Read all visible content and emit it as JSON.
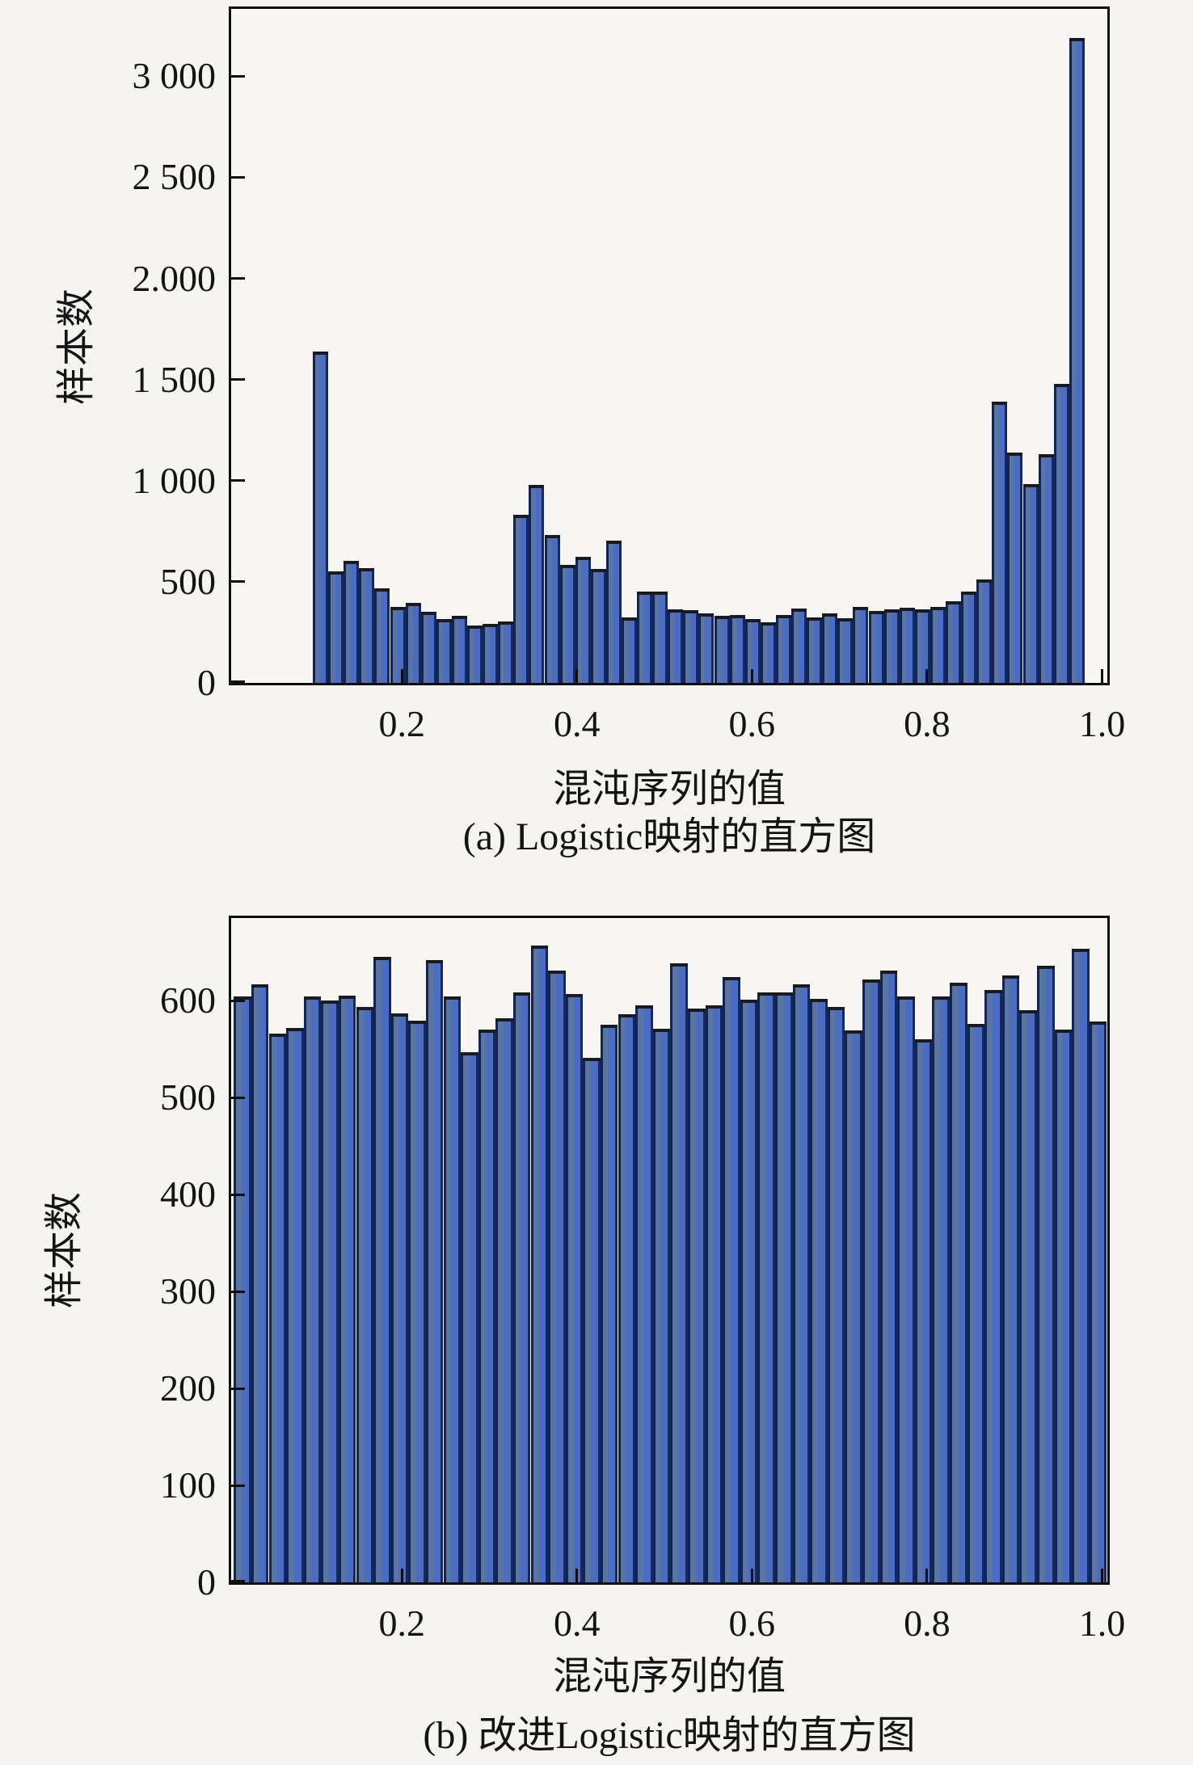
{
  "figure": {
    "background": "#f5f4f1",
    "bar_fill_blue": "#4a6cc3",
    "bar_fill_slate": "#5a76a0",
    "bar_edge": "#10245c",
    "bar_top_edge": "#181a20",
    "axis_color": "#0e0e0e"
  },
  "chart_data": [
    {
      "type": "bar",
      "title": "(a) Logistic映射的直方图",
      "xlabel": "混沌序列的值",
      "ylabel": "样本数",
      "grid": false,
      "legend": null,
      "xlim": [
        0.005,
        1.006
      ],
      "ylim": [
        0,
        3333
      ],
      "xticks": {
        "values": [
          0.2,
          0.4,
          0.6,
          0.8,
          1.0
        ],
        "labels": [
          "0.2",
          "0.4",
          "0.6",
          "0.8",
          "1.0"
        ]
      },
      "yticks": {
        "values": [
          0,
          500,
          1000,
          1500,
          2000,
          2500,
          3000
        ],
        "labels": [
          "0",
          "500",
          "1 000",
          "1 500",
          "2.000",
          "2 500",
          "3 000"
        ]
      },
      "bars": {
        "x_start": 0.0983,
        "bin_width": 0.017634,
        "counts": [
          1640,
          550,
          605,
          566,
          468,
          375,
          395,
          351,
          316,
          332,
          285,
          290,
          305,
          830,
          980,
          730,
          585,
          625,
          565,
          705,
          325,
          450,
          450,
          364,
          360,
          344,
          331,
          337,
          314,
          298,
          335,
          366,
          324,
          344,
          318,
          377,
          355,
          364,
          370,
          365,
          377,
          404,
          450,
          510,
          1390,
          1140,
          985,
          1130,
          1480,
          3190
        ]
      }
    },
    {
      "type": "bar",
      "title": "(b) 改进Logistic映射的直方图",
      "xlabel": "混沌序列的值",
      "ylabel": "样本数",
      "grid": false,
      "legend": null,
      "xlim": [
        0.005,
        1.006
      ],
      "ylim": [
        0,
        685
      ],
      "xticks": {
        "values": [
          0.2,
          0.4,
          0.6,
          0.8,
          1.0
        ],
        "labels": [
          "0.2",
          "0.4",
          "0.6",
          "0.8",
          "1.0"
        ]
      },
      "yticks": {
        "values": [
          0,
          100,
          200,
          300,
          400,
          500,
          600
        ],
        "labels": [
          "0",
          "100",
          "200",
          "300",
          "400",
          "500",
          "600"
        ]
      },
      "bars": {
        "x_start": 0.008,
        "bin_width": 0.01995,
        "counts": [
          604,
          617,
          566,
          572,
          604,
          600,
          605,
          593,
          645,
          587,
          579,
          642,
          604,
          547,
          570,
          582,
          608,
          657,
          631,
          607,
          541,
          575,
          586,
          595,
          571,
          638,
          592,
          595,
          624,
          601,
          608,
          608,
          617,
          602,
          593,
          569,
          622,
          631,
          604,
          560,
          604,
          618,
          576,
          611,
          626,
          590,
          636,
          570,
          653,
          578
        ]
      }
    }
  ]
}
